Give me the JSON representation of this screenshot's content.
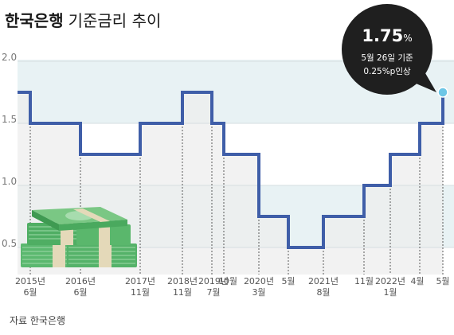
{
  "title": {
    "bold": "한국은행",
    "rest": "기준금리 추이"
  },
  "source": "자료  한국은행",
  "callout": {
    "value": "1.75",
    "unit": "%",
    "date_note": "5월 26일 기준",
    "change_note": "0.25%p인상"
  },
  "colors": {
    "line": "#3f5ea8",
    "band_light": "#e8f2f4",
    "band_gray": "#ededed",
    "callout_bg": "#1f1f1f",
    "marker": "#6dc6e6"
  },
  "icons": {
    "money": "banknote-stack-icon"
  },
  "chart_data": {
    "type": "line",
    "step": true,
    "title": "한국은행 기준금리 추이",
    "xlabel": "",
    "ylabel": "",
    "ylim": [
      0.4,
      2.0
    ],
    "yticks": [
      "0.5",
      "1.0",
      "1.5",
      "2.0"
    ],
    "x": [
      "2015년 6월",
      "2016년 6월",
      "2017년 11월",
      "2018년 11월",
      "2019년 7월",
      "2019년 10월",
      "2020년 3월",
      "2020년 5월",
      "2021년 8월",
      "2021년 11월",
      "2022년 1월",
      "2022년 4월",
      "2022년 5월"
    ],
    "xtick_labels": [
      {
        "top": "2015년",
        "bottom": "6월"
      },
      {
        "top": "2016년",
        "bottom": "6월"
      },
      {
        "top": "2017년",
        "bottom": "11월"
      },
      {
        "top": "2018년",
        "bottom": "11월"
      },
      {
        "top": "2019년",
        "bottom": "7월"
      },
      {
        "top": "10월",
        "bottom": ""
      },
      {
        "top": "2020년",
        "bottom": "3월"
      },
      {
        "top": "5월",
        "bottom": ""
      },
      {
        "top": "2021년",
        "bottom": "8월"
      },
      {
        "top": "11월",
        "bottom": ""
      },
      {
        "top": "2022년",
        "bottom": "1월"
      },
      {
        "top": "4월",
        "bottom": ""
      },
      {
        "top": "5월",
        "bottom": ""
      }
    ],
    "start_value": 1.75,
    "values": [
      1.5,
      1.25,
      1.5,
      1.75,
      1.5,
      1.25,
      0.75,
      0.5,
      0.75,
      1.0,
      1.25,
      1.5,
      1.75
    ]
  }
}
